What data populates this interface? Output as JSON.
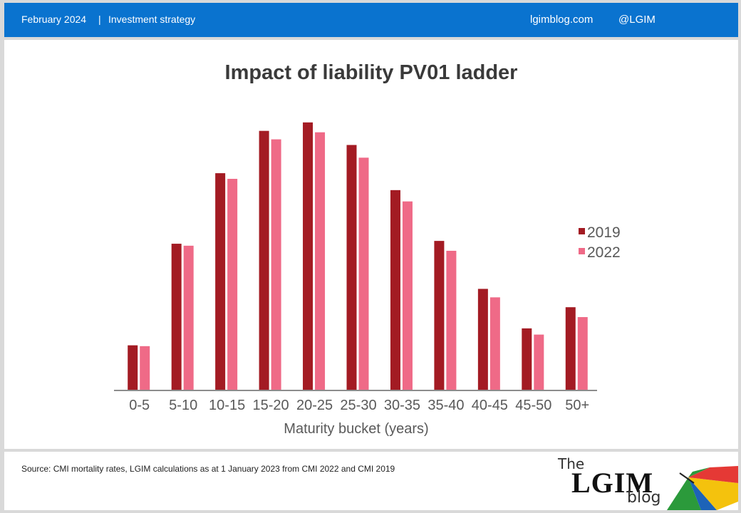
{
  "header": {
    "date": "February 2024",
    "separator": "|",
    "topic": "Investment strategy",
    "site": "lgimblog.com",
    "handle": "@LGIM"
  },
  "footer": {
    "source": "Source: CMI mortality rates, LGIM  calculations as at 1 January 2023 from CMI  2022 and CMI 2019",
    "logo": {
      "the": "The",
      "name": "LGIM",
      "blog": "blog"
    }
  },
  "colors": {
    "header_bg": "#0a73cf",
    "series_2019": "#a31b23",
    "series_2022": "#ef6a87"
  },
  "chart_data": {
    "type": "bar",
    "title": "Impact of liability PV01 ladder",
    "xlabel": "Maturity bucket (years)",
    "ylabel": "",
    "categories": [
      "0-5",
      "5-10",
      "10-15",
      "15-20",
      "20-25",
      "25-30",
      "30-35",
      "35-40",
      "40-45",
      "45-50",
      "50+"
    ],
    "series": [
      {
        "name": "2019",
        "color": "#a31b23",
        "values": [
          16,
          52,
          77,
          92,
          95,
          87,
          71,
          53,
          36,
          22,
          29.5
        ]
      },
      {
        "name": "2022",
        "color": "#ef6a87",
        "values": [
          15.7,
          51.3,
          75,
          89,
          91.5,
          82.5,
          67,
          49.5,
          33,
          19.8,
          26
        ]
      }
    ],
    "ylim": [
      0,
      100
    ],
    "legend_position": "right",
    "grid": false
  }
}
